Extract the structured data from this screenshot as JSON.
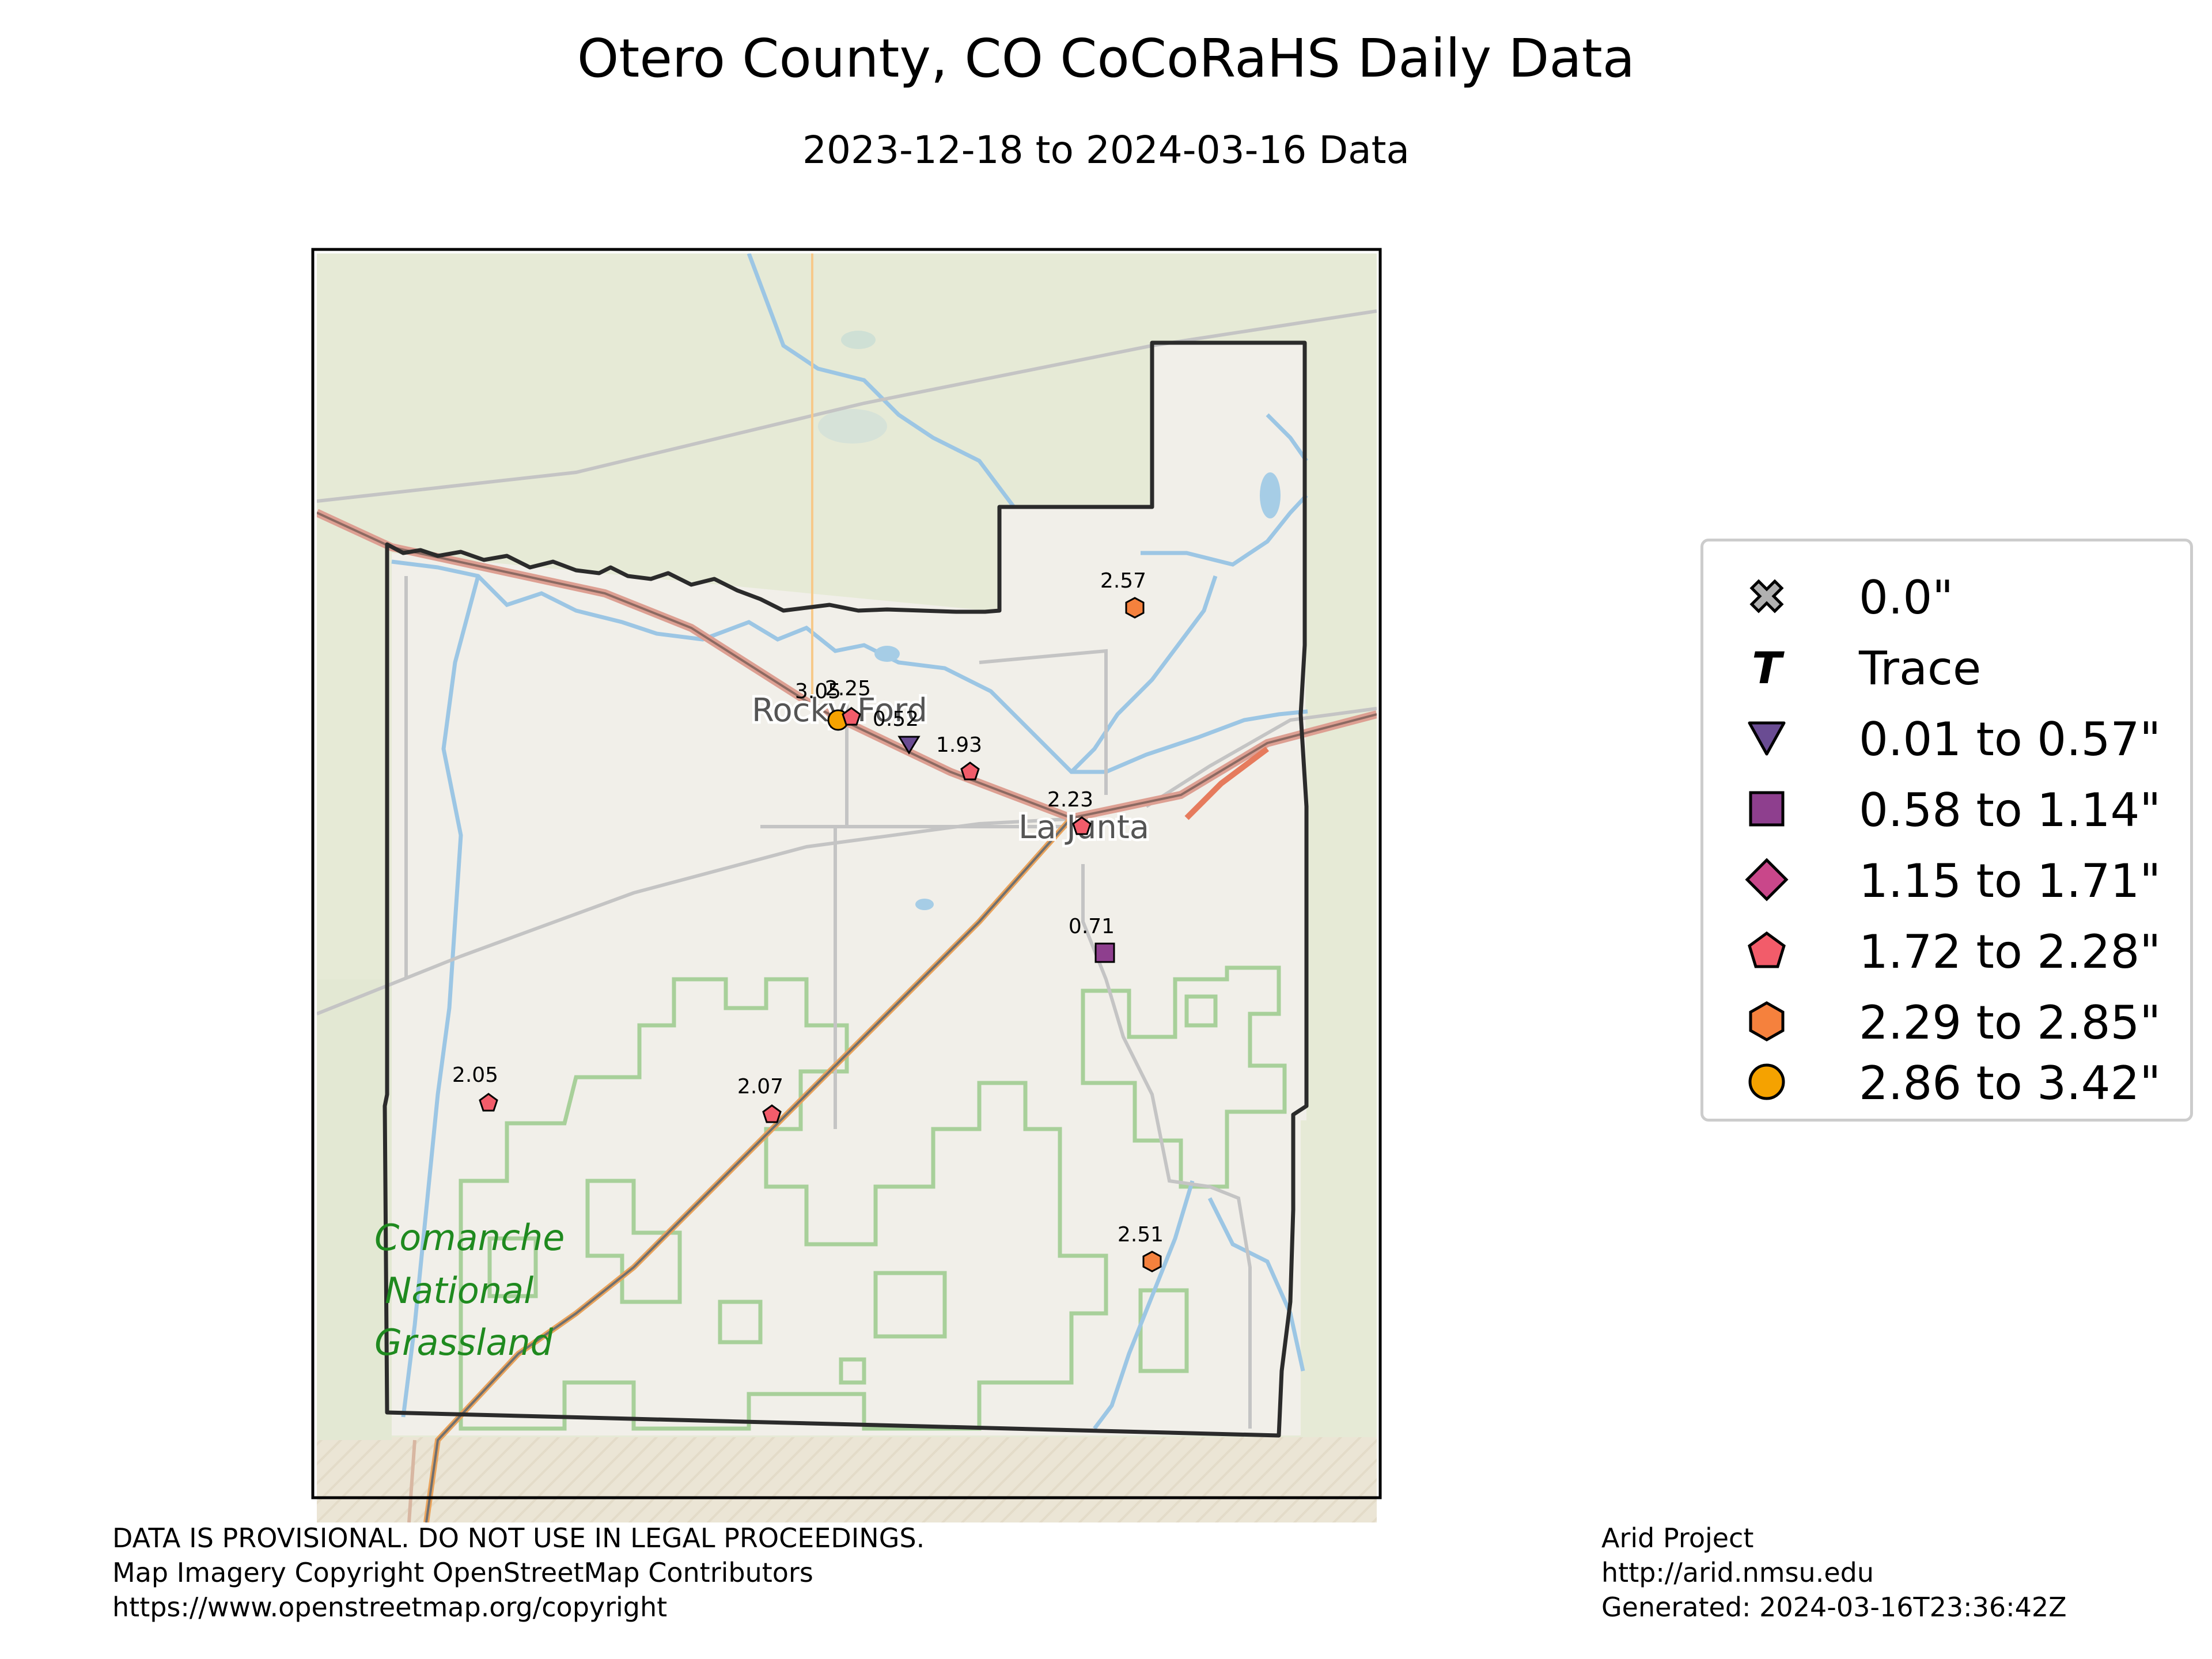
{
  "title": "Otero County, CO CoCoRaHS Daily Data",
  "subtitle": "2023-12-18 to 2024-03-16 Data",
  "map_labels": {
    "rocky_ford": "Rocky Ford",
    "la_junta": "La Junta",
    "comanche_1": "Comanche",
    "comanche_2": "National",
    "comanche_3": "Grassland"
  },
  "stations": [
    {
      "value": "2.57",
      "category": "2.29 to 2.85\""
    },
    {
      "value": "3.05",
      "category": "2.86 to 3.42\""
    },
    {
      "value": "2.25",
      "category": "1.72 to 2.28\""
    },
    {
      "value": "0.52",
      "category": "0.01 to 0.57\""
    },
    {
      "value": "1.93",
      "category": "1.72 to 2.28\""
    },
    {
      "value": "2.23",
      "category": "1.72 to 2.28\""
    },
    {
      "value": "0.71",
      "category": "0.58 to 1.14\""
    },
    {
      "value": "2.05",
      "category": "1.72 to 2.28\""
    },
    {
      "value": "2.07",
      "category": "1.72 to 2.28\""
    },
    {
      "value": "2.51",
      "category": "2.29 to 2.85\""
    }
  ],
  "legend": [
    {
      "label": "0.0\"",
      "icon": "x-marker-icon",
      "color": "#b0b0b0"
    },
    {
      "label": "Trace",
      "icon": "t-marker-icon",
      "color": "#000000"
    },
    {
      "label": "0.01 to 0.57\"",
      "icon": "triangle-down-icon",
      "color": "#6a4c93"
    },
    {
      "label": "0.58 to 1.14\"",
      "icon": "square-icon",
      "color": "#8e3f8e"
    },
    {
      "label": "1.15 to 1.71\"",
      "icon": "diamond-icon",
      "color": "#c9478a"
    },
    {
      "label": "1.72 to 2.28\"",
      "icon": "pentagon-icon",
      "color": "#f25c6a"
    },
    {
      "label": "2.29 to 2.85\"",
      "icon": "hexagon-icon",
      "color": "#f5813d"
    },
    {
      "label": "2.86 to 3.42\"",
      "icon": "circle-icon",
      "color": "#f5a200"
    }
  ],
  "footer_left": [
    "DATA IS PROVISIONAL. DO NOT USE IN LEGAL PROCEEDINGS.",
    "Map Imagery Copyright OpenStreetMap Contributors",
    "https://www.openstreetmap.org/copyright"
  ],
  "footer_right": [
    "Arid Project",
    "http://arid.nmsu.edu",
    "Generated: 2024-03-16T23:36:42Z"
  ]
}
